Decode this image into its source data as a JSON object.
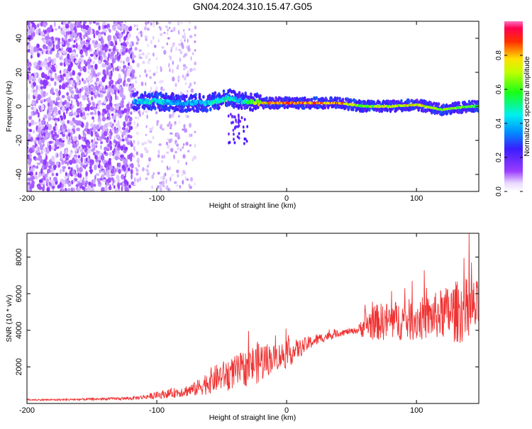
{
  "title": "GN04.2024.310.15.47.G05",
  "colors": {
    "snr_line": "#f03232",
    "spectrogram_low": "#8a2be2",
    "spectrogram_high": "#ff0000"
  },
  "colorbar": {
    "label": "Normalized spectral amplitude",
    "ticks": [
      "0.0",
      "0.2",
      "0.4",
      "0.6",
      "0.8"
    ],
    "tick_values": [
      0.0,
      0.2,
      0.4,
      0.6,
      0.8
    ],
    "range": [
      0,
      1
    ],
    "colormap": "rainbow (purple → blue → cyan → green → yellow → red → pink)"
  },
  "chart_data": [
    {
      "type": "heatmap",
      "xlabel": "Height of straight line (km)",
      "ylabel": "Frequency (Hz)",
      "xlim": [
        -200,
        148
      ],
      "ylim": [
        -50,
        50
      ],
      "x_ticks": [
        -200,
        -100,
        0,
        100
      ],
      "x_tick_labels": [
        "-200",
        "-100",
        "0",
        "100"
      ],
      "y_ticks": [
        -40,
        -20,
        0,
        20,
        40
      ],
      "y_tick_labels": [
        "-40",
        "-20",
        "0",
        "20",
        "40"
      ],
      "description_points": {
        "noise_region_x": [
          -200,
          -118
        ],
        "sparse_noise_x": [
          -118,
          -70
        ],
        "signal_track": [
          {
            "x": -118,
            "freq": 3,
            "amp": 0.45
          },
          {
            "x": -100,
            "freq": 3,
            "amp": 0.55
          },
          {
            "x": -80,
            "freq": 2,
            "amp": 0.4
          },
          {
            "x": -60,
            "freq": 2,
            "amp": 0.5
          },
          {
            "x": -45,
            "freq": 5,
            "amp": 0.55
          },
          {
            "x": -35,
            "freq": 3,
            "amp": 0.5
          },
          {
            "x": -20,
            "freq": 2,
            "amp": 0.85
          },
          {
            "x": 0,
            "freq": 2,
            "amp": 0.95
          },
          {
            "x": 20,
            "freq": 2,
            "amp": 0.97
          },
          {
            "x": 40,
            "freq": 2,
            "amp": 0.95
          },
          {
            "x": 60,
            "freq": 0,
            "amp": 0.7
          },
          {
            "x": 80,
            "freq": 0,
            "amp": 0.8
          },
          {
            "x": 100,
            "freq": 1,
            "amp": 0.85
          },
          {
            "x": 120,
            "freq": -2,
            "amp": 0.75
          },
          {
            "x": 140,
            "freq": 0,
            "amp": 0.7
          },
          {
            "x": 148,
            "freq": 0,
            "amp": 0.65
          }
        ]
      },
      "colorbar_label": "Normalized spectral amplitude"
    },
    {
      "type": "line",
      "xlabel": "Height of straight line (km)",
      "ylabel": "SNR (10 * v/v)",
      "xlim": [
        -200,
        148
      ],
      "ylim": [
        0,
        9300
      ],
      "x_ticks": [
        -200,
        -100,
        0,
        100
      ],
      "x_tick_labels": [
        "-200",
        "-100",
        "0",
        "100"
      ],
      "y_ticks": [
        2000,
        4000,
        6000,
        8000
      ],
      "y_tick_labels": [
        "2000",
        "4000",
        "6000",
        "8000"
      ],
      "series": [
        {
          "x": [
            -200,
            -180,
            -160,
            -140,
            -120,
            -110,
            -100,
            -90,
            -80,
            -70,
            -60,
            -50,
            -40,
            -30,
            -20,
            -10,
            0,
            10,
            20,
            30,
            40,
            50,
            55,
            60,
            70,
            80,
            90,
            100,
            110,
            120,
            130,
            140,
            148
          ],
          "values": [
            200,
            200,
            220,
            250,
            280,
            350,
            450,
            550,
            650,
            800,
            1200,
            1500,
            1700,
            2000,
            2300,
            2500,
            2700,
            3000,
            3400,
            3650,
            3850,
            3950,
            4000,
            4300,
            4450,
            4500,
            4550,
            4600,
            4700,
            4900,
            5000,
            5100,
            5200
          ],
          "spread": [
            50,
            50,
            60,
            70,
            90,
            120,
            200,
            250,
            300,
            400,
            700,
            800,
            900,
            1000,
            1200,
            700,
            800,
            500,
            350,
            250,
            200,
            150,
            200,
            800,
            1000,
            1100,
            1100,
            1200,
            1200,
            1400,
            1700,
            1800,
            1500
          ]
        }
      ]
    }
  ]
}
